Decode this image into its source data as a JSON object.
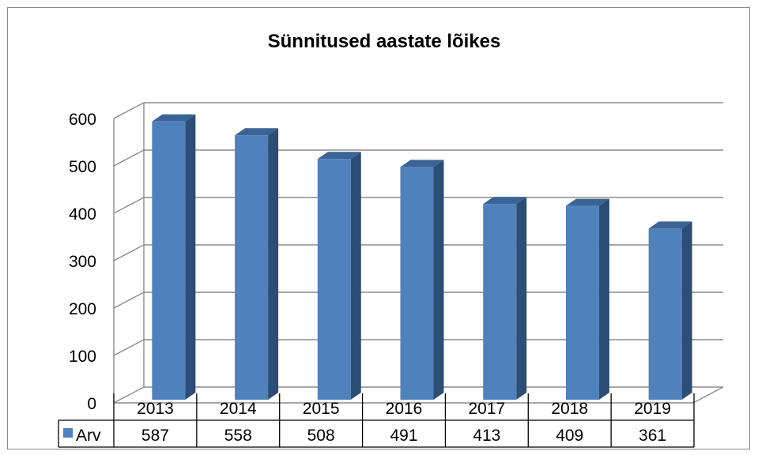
{
  "chart_data": {
    "type": "bar",
    "title": "Sünnitused aastate lõikes",
    "categories": [
      "2013",
      "2014",
      "2015",
      "2016",
      "2017",
      "2018",
      "2019"
    ],
    "series": [
      {
        "name": "Arv",
        "values": [
          587,
          558,
          508,
          491,
          413,
          409,
          361
        ]
      }
    ],
    "ylim": [
      0,
      600
    ],
    "yticks": [
      0,
      100,
      200,
      300,
      400,
      500,
      600
    ],
    "grid": true,
    "three_d": true,
    "legend": "data-table-left",
    "data_table": true,
    "colors": {
      "bar_front": "#4f81bd",
      "bar_side": "#2c4d75",
      "bar_top": "#3a6496",
      "grid": "#8c8c8c"
    }
  }
}
